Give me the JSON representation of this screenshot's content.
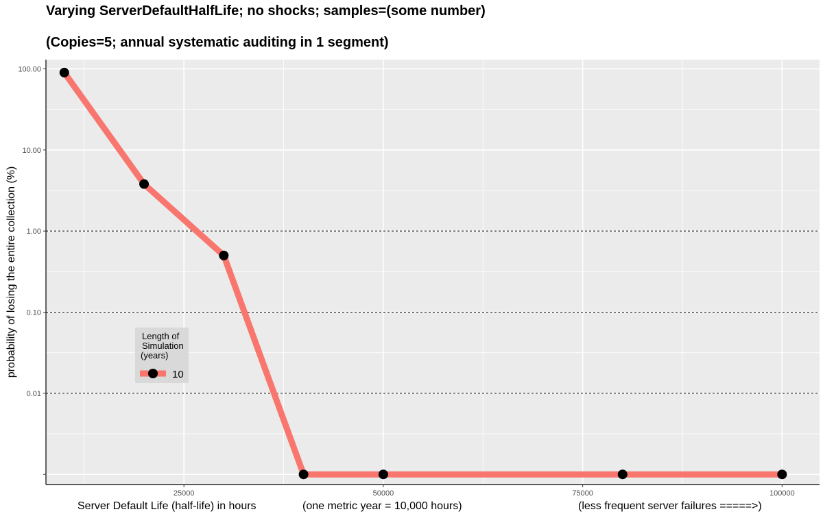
{
  "chart_data": {
    "type": "line",
    "title": "Varying ServerDefaultHalfLife; no shocks; samples=(some number)",
    "subtitle": "(Copies=5; annual systematic auditing in 1 segment)",
    "xlabel_parts": [
      "Server Default Life (half-life) in hours",
      "(one metric year = 10,000 hours)",
      "(less frequent server failures =====>)"
    ],
    "ylabel": "probability of losing the entire collection (%)",
    "x_scale": "linear",
    "y_scale": "log",
    "xlim": [
      7700,
      104700
    ],
    "ylim": [
      0.00075,
      130
    ],
    "x_ticks": [
      25000,
      50000,
      75000,
      100000
    ],
    "x_tick_labels": [
      "25000",
      "50000",
      "75000",
      "100000"
    ],
    "y_ticks": [
      0.001,
      0.01,
      0.1,
      1,
      10,
      100
    ],
    "y_tick_labels": [
      "",
      "0.01",
      "0.10",
      "1.00",
      "10.00",
      "100.00"
    ],
    "dashed_y_lines": [
      0.01,
      0.1,
      1
    ],
    "grid": true,
    "legend": {
      "title_lines": [
        "Length of",
        "Simulation",
        "(years)"
      ],
      "placement": "lower-left inside plot"
    },
    "series": [
      {
        "name": "10",
        "color": "#F8766D",
        "x": [
          10000,
          20000,
          30000,
          40000,
          50000,
          80000,
          100000
        ],
        "y": [
          90,
          3.8,
          0.5,
          0.001,
          0.001,
          0.001,
          0.001
        ]
      }
    ],
    "colors": {
      "panel_background": "#EBEBEB",
      "grid": "#FFFFFF",
      "point": "#000000",
      "legend_background": "#D9D9D9"
    }
  }
}
